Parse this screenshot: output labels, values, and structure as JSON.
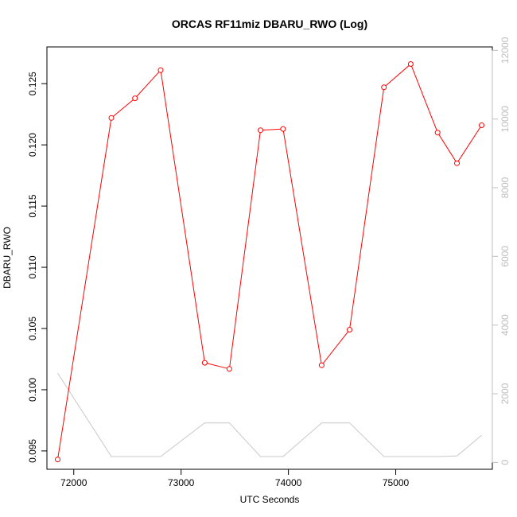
{
  "chart_data": {
    "type": "line",
    "title": "ORCAS RF11miz DBARU_RWO (Log)",
    "xlabel": "UTC Seconds",
    "ylabel": "DBARU_RWO",
    "xlim": [
      71750,
      75900
    ],
    "ylim": [
      0.0935,
      0.128
    ],
    "y2lim": [
      -200,
      12100
    ],
    "x_ticks": [
      "72000",
      "73000",
      "74000",
      "75000"
    ],
    "y_ticks": [
      "0.095",
      "0.100",
      "0.105",
      "0.110",
      "0.115",
      "0.120",
      "0.125"
    ],
    "y2_ticks": [
      "0",
      "2000",
      "4000",
      "6000",
      "8000",
      "10000",
      "12000"
    ],
    "grid": false,
    "series": [
      {
        "axis": "left",
        "color": "#ff0000",
        "marker": "circle",
        "x": [
          71850,
          72350,
          72570,
          72810,
          73220,
          73450,
          73740,
          73950,
          74310,
          74570,
          74890,
          75140,
          75390,
          75570,
          75800
        ],
        "values": [
          0.0943,
          0.1222,
          0.1238,
          0.1261,
          0.1022,
          0.1017,
          0.1212,
          0.1213,
          0.102,
          0.1049,
          0.1247,
          0.1266,
          0.121,
          0.1185,
          0.1216
        ]
      },
      {
        "axis": "right",
        "color": "#c8c8c8",
        "marker": "none",
        "x": [
          71850,
          72350,
          72570,
          72810,
          73220,
          73450,
          73740,
          73950,
          74310,
          74570,
          74890,
          75140,
          75390,
          75570,
          75800
        ],
        "values": [
          2600,
          170,
          170,
          170,
          1150,
          1150,
          170,
          170,
          1150,
          1150,
          170,
          170,
          170,
          190,
          790
        ]
      }
    ]
  }
}
